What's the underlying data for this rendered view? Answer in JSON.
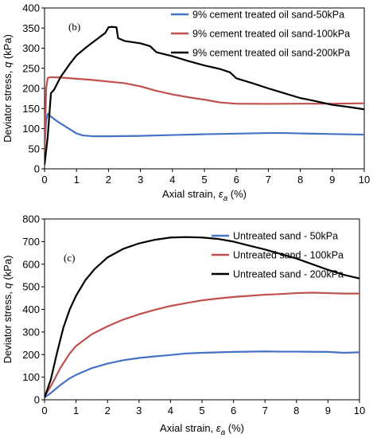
{
  "chart_data": [
    {
      "type": "line",
      "panel_label": "(b)",
      "xlabel_prefix": "Axial strain, ",
      "xlabel_symbol": "ε",
      "xlabel_sub": "a",
      "xlabel_suffix": " (%)",
      "ylabel_prefix": "Deviator stress, ",
      "ylabel_symbol": "q",
      "ylabel_suffix": " (kPa)",
      "xlim": [
        0,
        10
      ],
      "ylim": [
        0,
        400
      ],
      "xticks": [
        0,
        1,
        2,
        3,
        4,
        5,
        6,
        7,
        8,
        9,
        10
      ],
      "yticks": [
        0,
        50,
        100,
        150,
        200,
        250,
        300,
        350,
        400
      ],
      "grid": false,
      "legend_position": "top-right",
      "series": [
        {
          "name": "9% cement treated oil sand-50kPa",
          "color": "#4472C4",
          "points": [
            [
              0,
              50
            ],
            [
              0.05,
              120
            ],
            [
              0.1,
              137
            ],
            [
              0.2,
              130
            ],
            [
              0.4,
              118
            ],
            [
              0.6,
              108
            ],
            [
              0.8,
              98
            ],
            [
              1.0,
              88
            ],
            [
              1.2,
              83
            ],
            [
              1.5,
              81
            ],
            [
              2,
              81
            ],
            [
              3,
              82
            ],
            [
              4,
              84
            ],
            [
              5,
              86
            ],
            [
              6,
              87.5
            ],
            [
              7,
              89
            ],
            [
              7.5,
              89
            ],
            [
              8,
              88
            ],
            [
              9,
              86.5
            ],
            [
              10,
              85
            ]
          ]
        },
        {
          "name": "9% cement treated oil sand-100kPa",
          "color": "#C0504D",
          "points": [
            [
              0,
              40
            ],
            [
              0.05,
              200
            ],
            [
              0.1,
              226
            ],
            [
              0.2,
              228
            ],
            [
              0.5,
              227
            ],
            [
              1,
              224
            ],
            [
              1.5,
              221
            ],
            [
              2,
              217
            ],
            [
              2.5,
              213
            ],
            [
              3,
              205
            ],
            [
              3.5,
              194
            ],
            [
              4,
              185
            ],
            [
              4.5,
              178
            ],
            [
              5,
              172
            ],
            [
              5.5,
              165
            ],
            [
              6,
              162
            ],
            [
              7,
              161.5
            ],
            [
              8,
              162
            ],
            [
              9,
              162
            ],
            [
              10,
              163
            ]
          ]
        },
        {
          "name": "9% cement treated oil sand-200kPa",
          "color": "#000000",
          "points": [
            [
              0,
              10
            ],
            [
              0.1,
              80
            ],
            [
              0.2,
              188
            ],
            [
              0.3,
              197
            ],
            [
              0.5,
              228
            ],
            [
              0.8,
              262
            ],
            [
              1,
              282
            ],
            [
              1.3,
              302
            ],
            [
              1.6,
              320
            ],
            [
              1.9,
              338
            ],
            [
              2.0,
              352
            ],
            [
              2.1,
              353
            ],
            [
              2.25,
              352
            ],
            [
              2.3,
              325
            ],
            [
              2.5,
              318
            ],
            [
              3,
              312
            ],
            [
              3.3,
              305
            ],
            [
              3.5,
              290
            ],
            [
              4,
              280
            ],
            [
              4.5,
              268
            ],
            [
              5,
              257
            ],
            [
              5.5,
              248
            ],
            [
              5.8,
              240
            ],
            [
              6,
              225
            ],
            [
              6.5,
              213
            ],
            [
              7,
              200
            ],
            [
              7.5,
              188
            ],
            [
              8,
              176
            ],
            [
              8.5,
              168
            ],
            [
              9,
              159
            ],
            [
              9.2,
              157
            ],
            [
              9.5,
              154
            ],
            [
              10,
              148
            ]
          ]
        }
      ]
    },
    {
      "type": "line",
      "panel_label": "(c)",
      "xlabel_prefix": "Axial strain, ",
      "xlabel_symbol": "ε",
      "xlabel_sub": "a",
      "xlabel_suffix": " (%)",
      "ylabel_prefix": "Deviator stress, ",
      "ylabel_symbol": "q",
      "ylabel_suffix": " (kPa)",
      "xlim": [
        0,
        10
      ],
      "ylim": [
        0,
        800
      ],
      "xticks": [
        0,
        1,
        2,
        3,
        4,
        5,
        6,
        7,
        8,
        9,
        10
      ],
      "yticks": [
        0,
        100,
        200,
        300,
        400,
        500,
        600,
        700,
        800
      ],
      "grid": false,
      "legend_position": "top-right",
      "series": [
        {
          "name": "Untreated sand - 50kPa",
          "color": "#4472C4",
          "points": [
            [
              0,
              10
            ],
            [
              0.2,
              30
            ],
            [
              0.5,
              65
            ],
            [
              0.8,
              95
            ],
            [
              1,
              110
            ],
            [
              1.5,
              140
            ],
            [
              2,
              160
            ],
            [
              2.5,
              175
            ],
            [
              3,
              185
            ],
            [
              3.5,
              192
            ],
            [
              4,
              198
            ],
            [
              4.5,
              205
            ],
            [
              5,
              208
            ],
            [
              6,
              212
            ],
            [
              7,
              214
            ],
            [
              7.5,
              213
            ],
            [
              8,
              213
            ],
            [
              9,
              212
            ],
            [
              9.5,
              208
            ],
            [
              10,
              210
            ]
          ]
        },
        {
          "name": "Untreated sand - 100kPa",
          "color": "#C0504D",
          "points": [
            [
              0,
              15
            ],
            [
              0.2,
              60
            ],
            [
              0.5,
              140
            ],
            [
              0.8,
              205
            ],
            [
              1,
              238
            ],
            [
              1.5,
              290
            ],
            [
              2,
              325
            ],
            [
              2.5,
              355
            ],
            [
              3,
              378
            ],
            [
              3.5,
              398
            ],
            [
              4,
              415
            ],
            [
              4.5,
              428
            ],
            [
              5,
              440
            ],
            [
              5.5,
              448
            ],
            [
              6,
              455
            ],
            [
              6.5,
              460
            ],
            [
              7,
              465
            ],
            [
              7.5,
              468
            ],
            [
              8,
              472
            ],
            [
              8.5,
              474
            ],
            [
              9,
              472
            ],
            [
              9.5,
              470
            ],
            [
              10,
              470
            ]
          ]
        },
        {
          "name": "Untreated sand - 200kPa",
          "color": "#000000",
          "points": [
            [
              0,
              10
            ],
            [
              0.2,
              90
            ],
            [
              0.4,
              210
            ],
            [
              0.6,
              320
            ],
            [
              0.8,
              400
            ],
            [
              1,
              460
            ],
            [
              1.3,
              530
            ],
            [
              1.6,
              580
            ],
            [
              2,
              630
            ],
            [
              2.5,
              668
            ],
            [
              3,
              692
            ],
            [
              3.5,
              708
            ],
            [
              4,
              718
            ],
            [
              4.5,
              720
            ],
            [
              5,
              718
            ],
            [
              5.5,
              712
            ],
            [
              6,
              700
            ],
            [
              6.5,
              682
            ],
            [
              7,
              665
            ],
            [
              7.5,
              645
            ],
            [
              8,
              625
            ],
            [
              8.5,
              600
            ],
            [
              9,
              575
            ],
            [
              9.5,
              553
            ],
            [
              10,
              537
            ]
          ]
        }
      ]
    }
  ]
}
